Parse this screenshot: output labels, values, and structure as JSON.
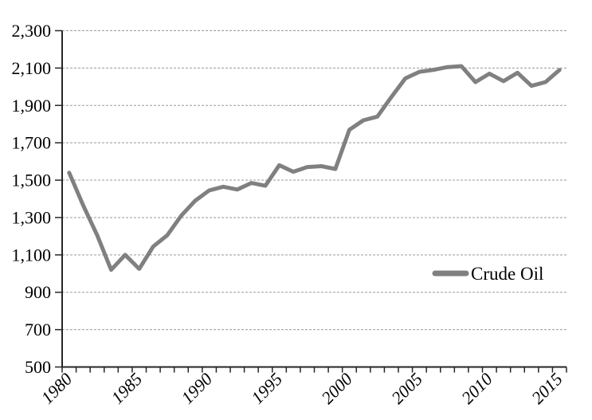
{
  "chart_data": {
    "type": "line",
    "title": "",
    "xlabel": "",
    "ylabel": "",
    "x": [
      1980,
      1981,
      1982,
      1983,
      1984,
      1985,
      1986,
      1987,
      1988,
      1989,
      1990,
      1991,
      1992,
      1993,
      1994,
      1995,
      1996,
      1997,
      1998,
      1999,
      2000,
      2001,
      2002,
      2003,
      2004,
      2005,
      2006,
      2007,
      2008,
      2009,
      2010,
      2011,
      2012,
      2013,
      2014,
      2015
    ],
    "series": [
      {
        "name": "Crude Oil",
        "color": "#808080",
        "line_width": 5,
        "values": [
          1540,
          1365,
          1205,
          1020,
          1100,
          1025,
          1145,
          1205,
          1310,
          1390,
          1445,
          1465,
          1450,
          1485,
          1470,
          1580,
          1545,
          1570,
          1575,
          1560,
          1770,
          1820,
          1840,
          1945,
          2045,
          2080,
          2090,
          2105,
          2110,
          2025,
          2070,
          2030,
          2075,
          2005,
          2025,
          2090
        ]
      }
    ],
    "ylim": [
      500,
      2300
    ],
    "ytick_step": 200,
    "ytick_labels": [
      "500",
      "700",
      "900",
      "1,100",
      "1,300",
      "1,500",
      "1,700",
      "1,900",
      "2,100",
      "2,300"
    ],
    "xtick_labels": [
      "1980",
      "1985",
      "1990",
      "1995",
      "2000",
      "2005",
      "2010",
      "2015"
    ],
    "grid": "horizontal-dashed",
    "gridline_color": "#999999",
    "axis_color": "#262626",
    "legend_position": "middle-right",
    "legend_label": "Crude Oil"
  }
}
